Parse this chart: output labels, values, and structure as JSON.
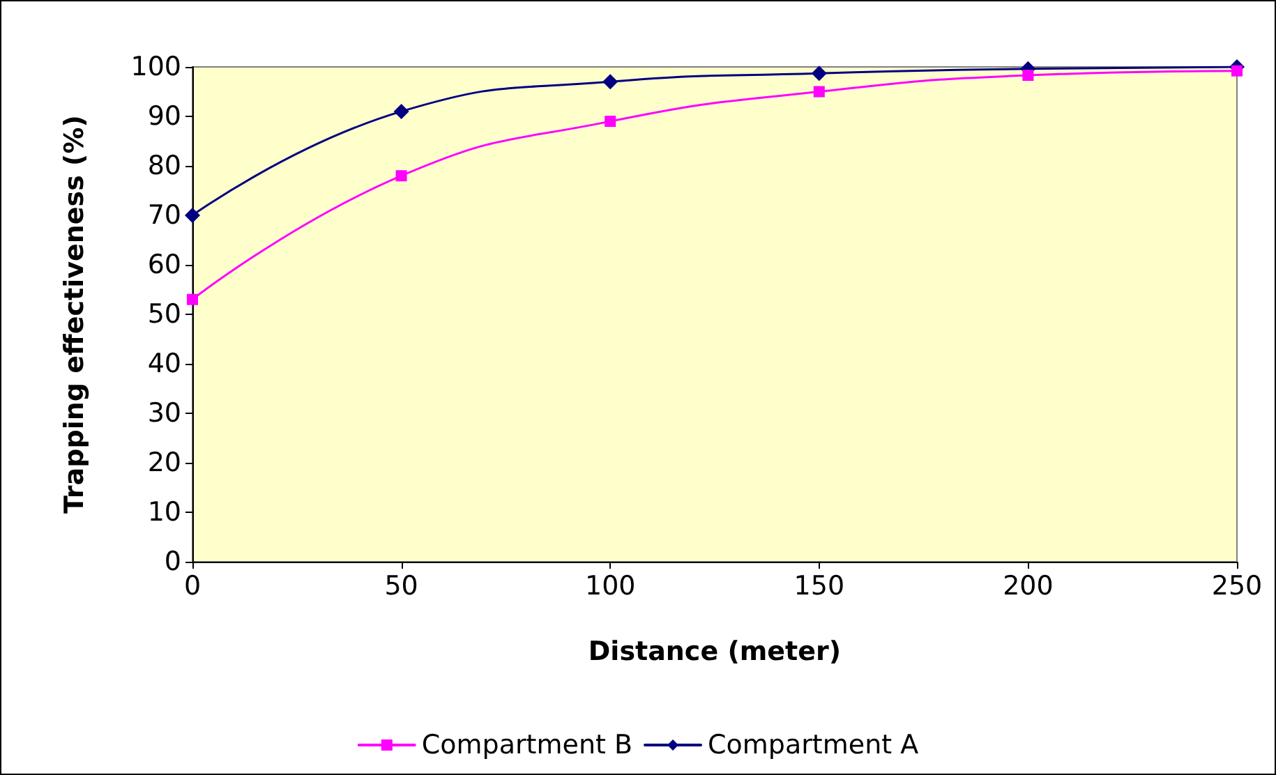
{
  "chart_data": {
    "type": "line",
    "xlabel": "Distance (meter)",
    "ylabel": "Trapping effectiveness (%)",
    "x": [
      0,
      50,
      100,
      150,
      200,
      250
    ],
    "series": [
      {
        "name": "Compartment B",
        "color": "#ff00ff",
        "marker": "square",
        "values": [
          53,
          78,
          89,
          95,
          98.3,
          99.2
        ]
      },
      {
        "name": "Compartment A",
        "color": "#000080",
        "marker": "diamond",
        "values": [
          70,
          91,
          97,
          98.7,
          99.6,
          100
        ]
      }
    ],
    "xlim": [
      0,
      250
    ],
    "xticks": [
      0,
      50,
      100,
      150,
      200,
      250
    ],
    "ylim": [
      0,
      100
    ],
    "yticks": [
      0,
      10,
      20,
      30,
      40,
      50,
      60,
      70,
      80,
      90,
      100
    ],
    "grid": false,
    "legend": "bottom",
    "line_style": "solid"
  }
}
